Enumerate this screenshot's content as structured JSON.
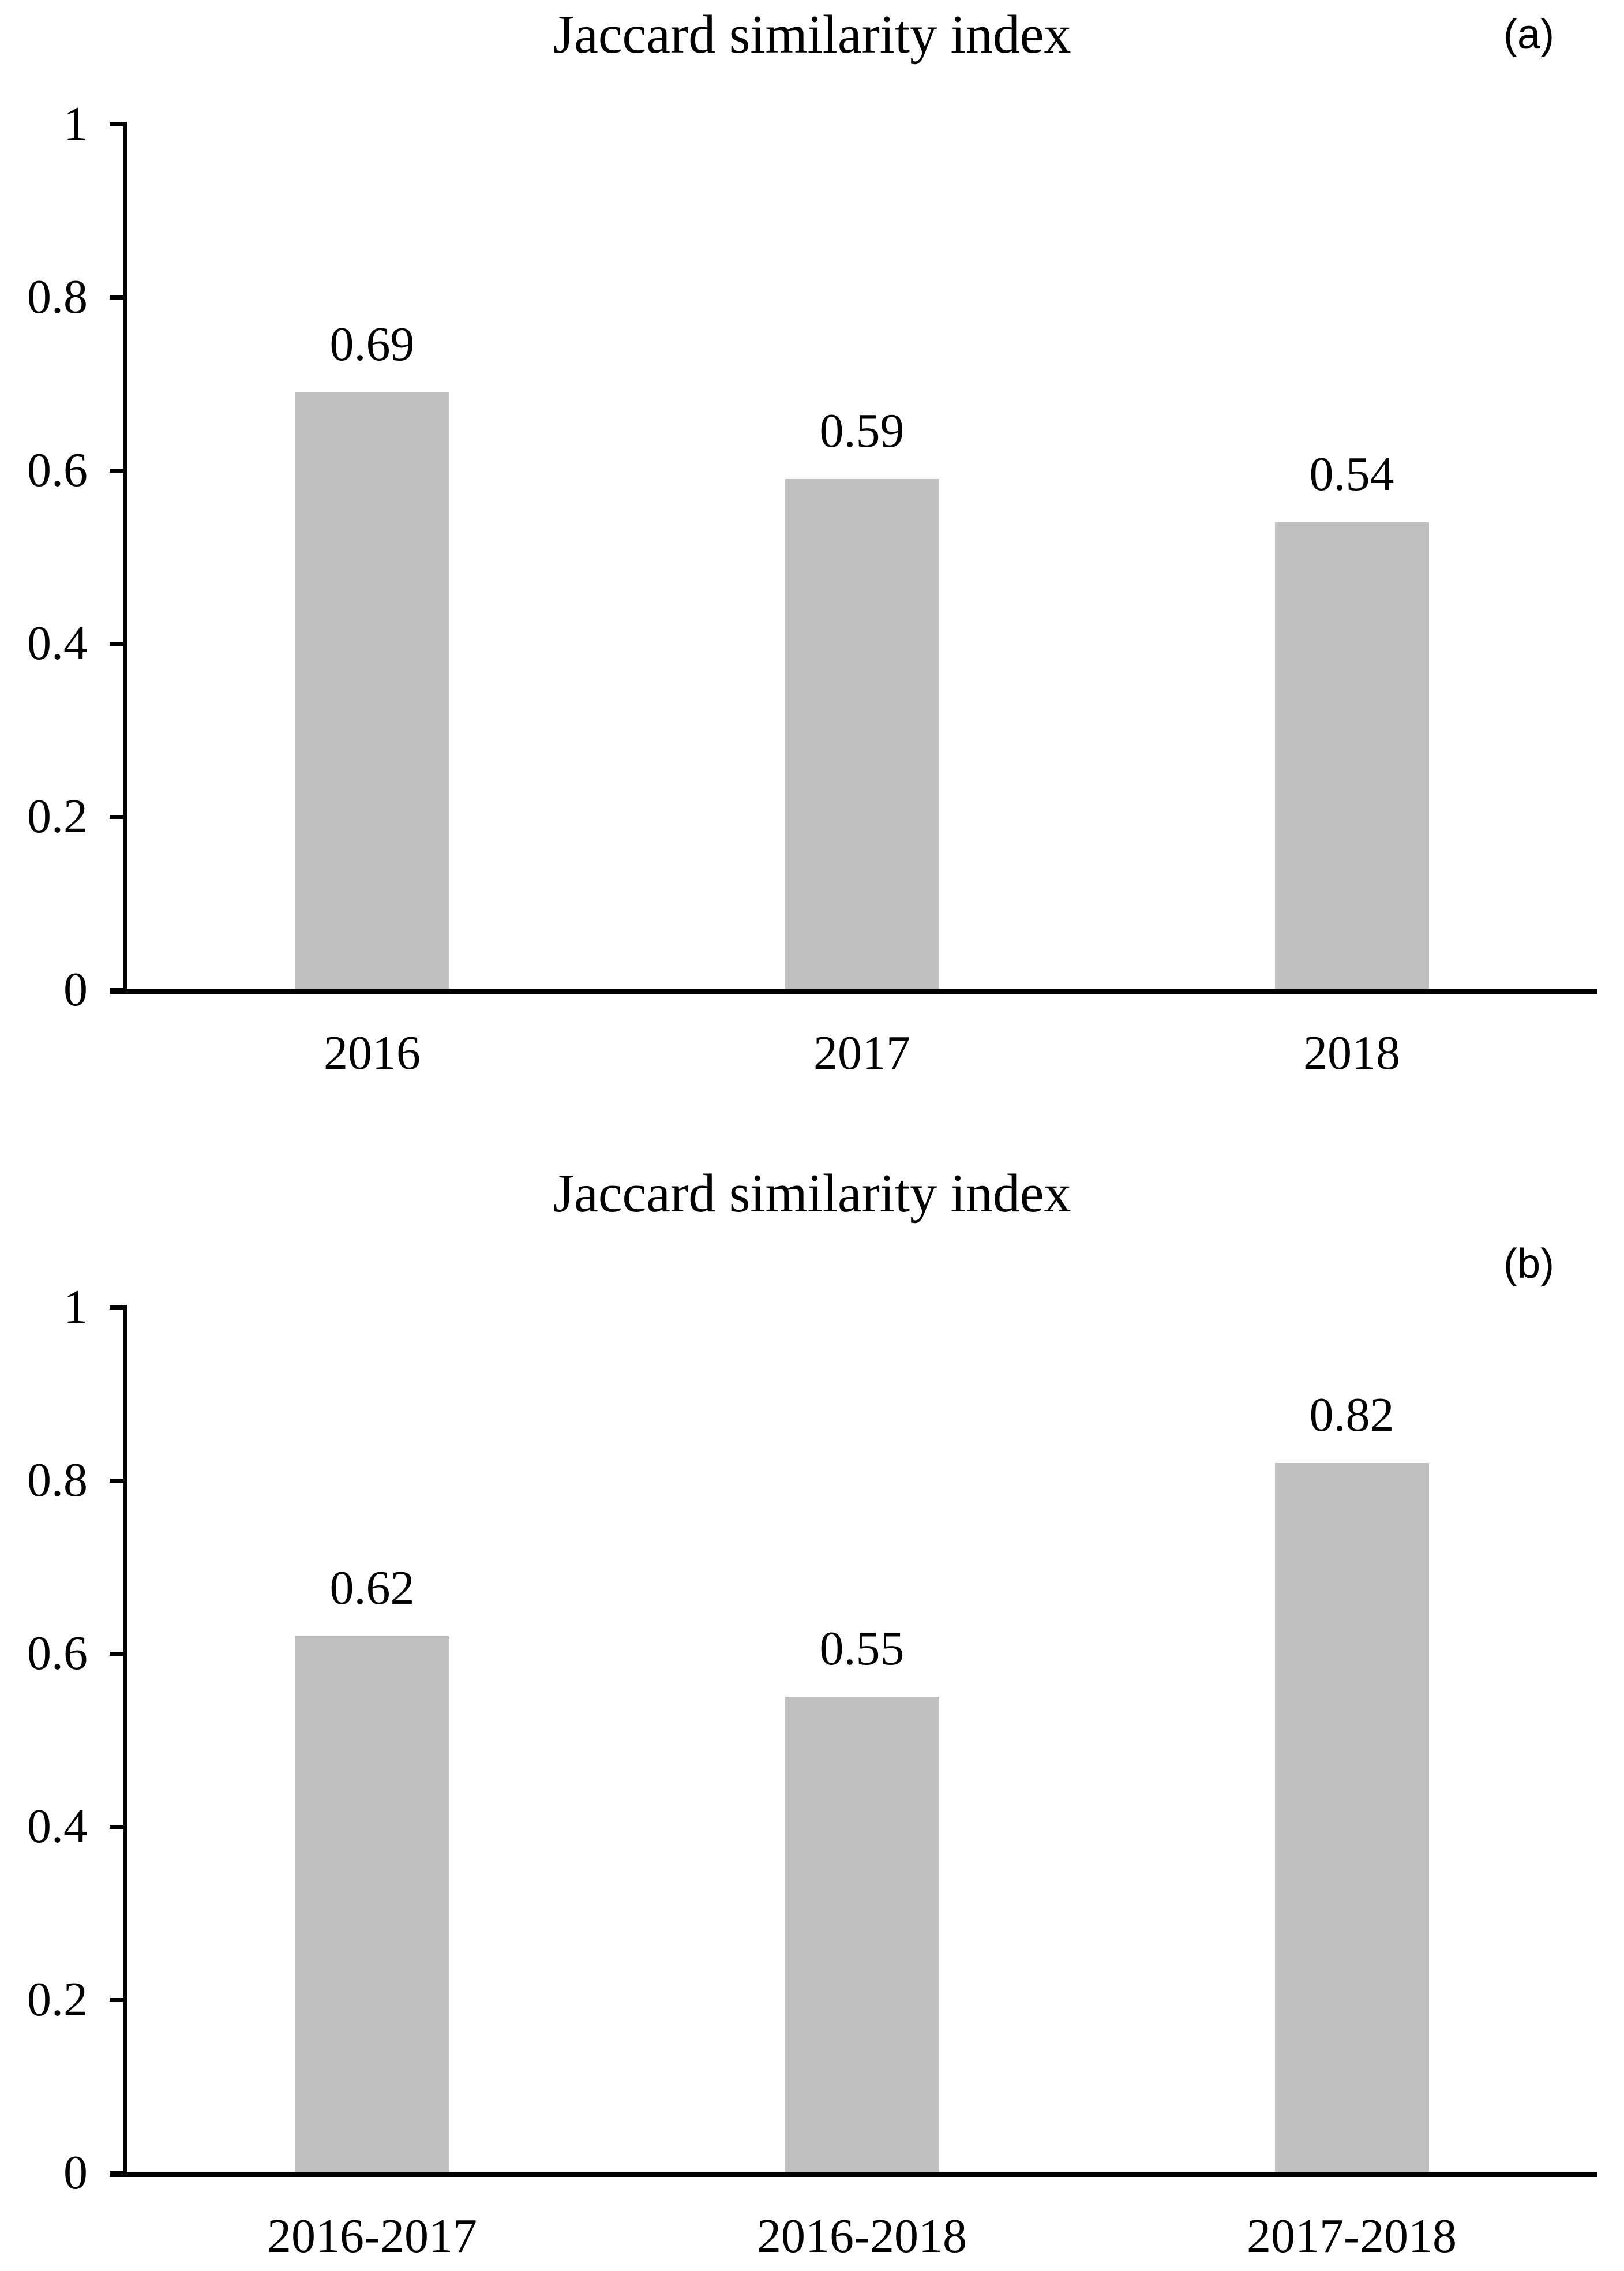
{
  "figure_title": "Jaccard similarity index",
  "chart_data": [
    {
      "type": "bar",
      "panel_label": "(a)",
      "title": "Jaccard similarity index",
      "categories": [
        "2016",
        "2017",
        "2018"
      ],
      "values": [
        0.69,
        0.59,
        0.54
      ],
      "data_labels": [
        "0.69",
        "0.59",
        "0.54"
      ],
      "y_tick_labels": [
        "1",
        "0.8",
        "0.6",
        "0.4",
        "0.2",
        "0"
      ],
      "ylim": [
        0,
        1
      ],
      "xlabel": "",
      "ylabel": "",
      "grid": false,
      "legend": false,
      "bar_color": "#bfbfbf",
      "axis_color": "#000000",
      "text_color": "#000000"
    },
    {
      "type": "bar",
      "panel_label": "(b)",
      "title": "Jaccard similarity index",
      "categories": [
        "2016-2017",
        "2016-2018",
        "2017-2018"
      ],
      "values": [
        0.62,
        0.55,
        0.82
      ],
      "data_labels": [
        "0.62",
        "0.55",
        "0.82"
      ],
      "y_tick_labels": [
        "1",
        "0.8",
        "0.6",
        "0.4",
        "0.2",
        "0"
      ],
      "ylim": [
        0,
        1
      ],
      "xlabel": "",
      "ylabel": "",
      "grid": false,
      "legend": false,
      "bar_color": "#bfbfbf",
      "axis_color": "#000000",
      "text_color": "#000000"
    }
  ]
}
